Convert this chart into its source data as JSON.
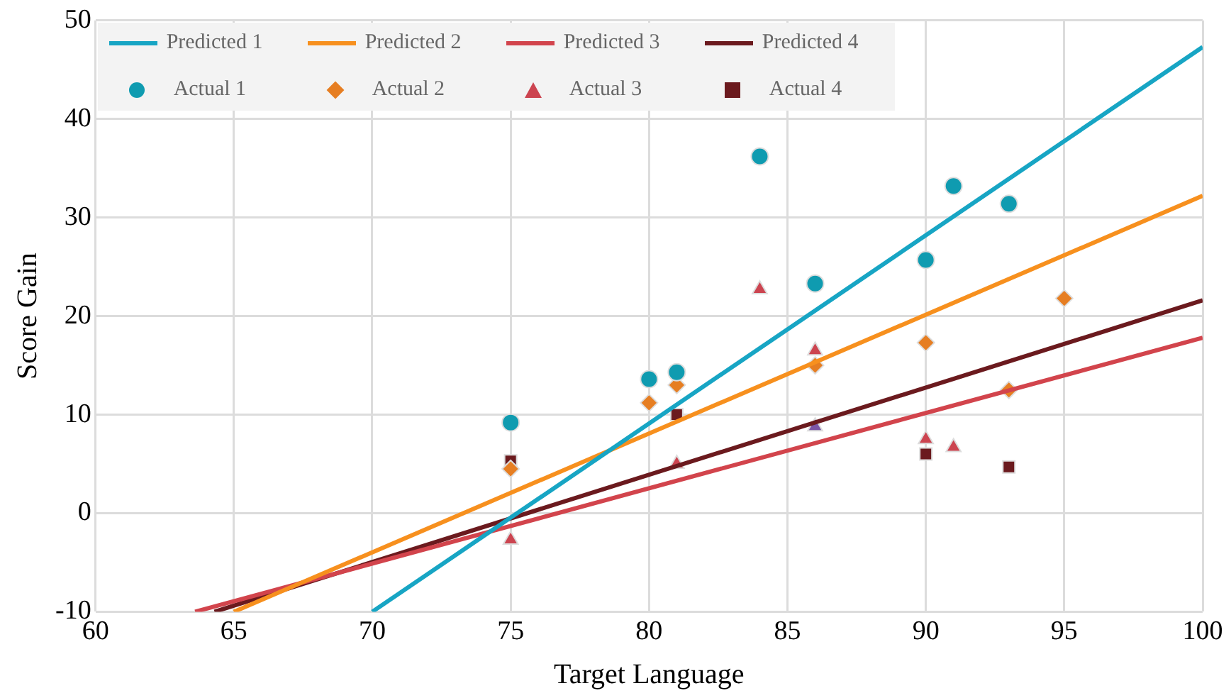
{
  "chart_data": {
    "type": "scatter",
    "xlabel": "Target Language",
    "ylabel": "Score Gain",
    "xlim": [
      60,
      100
    ],
    "xticks": [
      60,
      65,
      70,
      75,
      80,
      85,
      90,
      95,
      100
    ],
    "ylim": [
      -10,
      50
    ],
    "yticks": [
      -10,
      0,
      10,
      20,
      30,
      40,
      50
    ],
    "grid": true,
    "legend": "top",
    "series": [
      {
        "name": "Predicted 1",
        "type": "line",
        "marker": "none",
        "color": "#17a5c4",
        "x": [
          70,
          100
        ],
        "values": [
          -10,
          47.3
        ]
      },
      {
        "name": "Predicted 2",
        "type": "line",
        "marker": "none",
        "color": "#f7901e",
        "x": [
          65,
          100
        ],
        "values": [
          -10,
          32.2
        ]
      },
      {
        "name": "Predicted 3",
        "type": "line",
        "marker": "none",
        "color": "#d2444c",
        "x": [
          63.6,
          100
        ],
        "values": [
          -10,
          17.8
        ]
      },
      {
        "name": "Predicted 4",
        "type": "line",
        "marker": "none",
        "color": "#6b1a1e",
        "x": [
          64.3,
          100
        ],
        "values": [
          -10,
          21.6
        ]
      },
      {
        "name": "Actual 1",
        "marker": "circle",
        "color": "#0f9bb0",
        "x": [
          75,
          80,
          81,
          84,
          86,
          90,
          91,
          93
        ],
        "values": [
          9.2,
          13.6,
          14.3,
          36.2,
          23.3,
          25.7,
          33.2,
          31.4
        ]
      },
      {
        "name": "Actual 2",
        "marker": "diamond",
        "color": "#e67e22",
        "x": [
          75,
          80,
          81,
          86,
          90,
          93,
          95
        ],
        "values": [
          4.5,
          11.2,
          13,
          15,
          17.3,
          12.5,
          21.8
        ]
      },
      {
        "name": "Actual 3",
        "marker": "triangle",
        "color": "#cc4450",
        "colors": [
          "#cc4450",
          "#cc4450",
          "#cc4450",
          "#cc4450",
          "#7b55a6",
          "#cc4450",
          "#cc4450"
        ],
        "x": [
          75,
          81,
          84,
          86,
          86,
          90,
          91
        ],
        "values": [
          -2.7,
          5,
          22.7,
          16.5,
          8.8,
          7.5,
          6.7
        ]
      },
      {
        "name": "Actual 4",
        "marker": "square",
        "color": "#6b1a1e",
        "x": [
          75,
          81,
          90,
          93
        ],
        "values": [
          5.3,
          10,
          6,
          4.7
        ]
      }
    ]
  }
}
